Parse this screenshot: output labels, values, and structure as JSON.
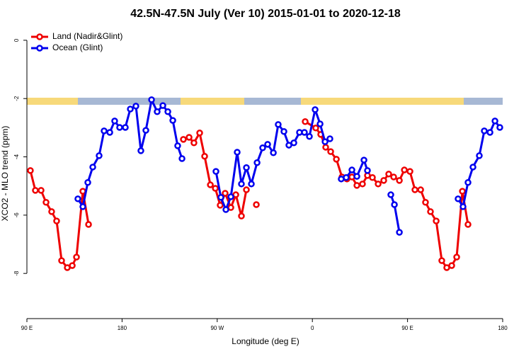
{
  "chart_data": {
    "type": "line",
    "title": "42.5N-47.5N July (Ver 10)   2015-01-01 to 2020-12-18",
    "x_label": "Longitude (deg E)",
    "y_label": "XCO2 - MLO trend (ppm)",
    "xlim": [
      90,
      540
    ],
    "ylim": [
      -9.55,
      0.41
    ],
    "xticks": [
      {
        "value": 90,
        "label": "90 E"
      },
      180,
      {
        "value": 270,
        "label": "90 W"
      },
      {
        "value": 360,
        "label": "0"
      },
      {
        "value": 450,
        "label": "90 E"
      },
      {
        "value": 540,
        "label": "180"
      }
    ],
    "yticks": [
      0,
      -2,
      -4,
      -6,
      -8
    ],
    "legend": "top-left",
    "series": [
      {
        "name": "Land (Nadir&Glint)",
        "color": "#ee0000",
        "x": [
          93.3,
          98.0,
          103.4,
          108.1,
          113.4,
          118.1,
          122.8,
          128.2,
          132.9,
          136.9,
          142.9,
          148.3,
          null,
          238.0,
          243.4,
          248.0,
          253.4,
          258.1,
          263.5,
          268.2,
          272.8,
          277.5,
          282.9,
          287.6,
          292.9,
          297.6,
          null,
          307.0,
          null,
          353.2,
          363.2,
          367.9,
          372.6,
          377.3,
          382.7,
          388.0,
          392.7,
          397.4,
          402.1,
          407.4,
          412.1,
          416.8,
          422.2,
          427.5,
          432.2,
          436.9,
          442.3,
          447.0,
          452.3,
          457.0,
          462.4,
          467.0,
          471.7,
          477.1,
          482.4,
          487.1,
          491.8,
          496.5,
          501.9,
          507.2
        ],
        "values": [
          -4.47,
          -5.15,
          -5.15,
          -5.56,
          -5.88,
          -6.2,
          -7.56,
          -7.8,
          -7.73,
          -7.44,
          -5.18,
          -6.32,
          null,
          -3.4,
          -3.33,
          -3.52,
          -3.18,
          -3.98,
          -4.96,
          -5.08,
          -5.66,
          -5.25,
          -5.74,
          -5.3,
          -6.03,
          -5.13,
          null,
          -5.64,
          null,
          -2.79,
          -3.01,
          -3.23,
          -3.67,
          -3.82,
          -4.08,
          -4.69,
          -4.76,
          -4.69,
          -4.98,
          -4.93,
          -4.64,
          -4.71,
          -4.93,
          -4.81,
          -4.59,
          -4.69,
          -4.81,
          -4.45,
          -4.5,
          -5.13,
          -5.13,
          -5.56,
          -5.88,
          -6.2,
          -7.56,
          -7.8,
          -7.73,
          -7.44,
          -5.18,
          -6.32
        ]
      },
      {
        "name": "Ocean (Glint)",
        "color": "#0000ee",
        "x": [
          138.2,
          142.9,
          147.6,
          152.3,
          158.3,
          163.0,
          168.4,
          173.0,
          177.7,
          183.1,
          187.8,
          193.1,
          197.8,
          202.5,
          207.9,
          213.2,
          218.6,
          223.3,
          228.0,
          232.6,
          236.7,
          null,
          268.8,
          273.5,
          278.2,
          282.9,
          288.9,
          292.9,
          297.6,
          302.3,
          307.7,
          313.0,
          317.7,
          323.1,
          327.7,
          333.1,
          337.8,
          342.5,
          347.8,
          352.5,
          357.2,
          362.6,
          367.3,
          372.0,
          376.6,
          null,
          387.3,
          392.0,
          397.4,
          402.1,
          408.8,
          412.1,
          null,
          434.2,
          437.6,
          442.3,
          null,
          497.8,
          502.5,
          507.2,
          511.9,
          517.9,
          522.6,
          528.0,
          532.7,
          537.3
        ],
        "values": [
          -5.44,
          -5.71,
          -4.88,
          -4.35,
          -3.96,
          -3.11,
          -3.16,
          -2.77,
          -2.99,
          -2.99,
          -2.36,
          -2.26,
          -3.79,
          -3.09,
          -2.04,
          -2.45,
          -2.24,
          -2.45,
          -2.75,
          -3.62,
          -4.06,
          null,
          -4.5,
          -5.39,
          -5.81,
          -5.37,
          -3.84,
          -4.93,
          -4.37,
          -4.93,
          -4.2,
          -3.69,
          -3.57,
          -3.86,
          -2.89,
          -3.13,
          -3.6,
          -3.52,
          -3.16,
          -3.16,
          -3.3,
          -2.38,
          -2.87,
          -3.48,
          -3.38,
          null,
          -4.76,
          -4.71,
          -4.45,
          -4.67,
          -4.11,
          -4.47,
          null,
          -5.3,
          -5.64,
          -6.59,
          null,
          -5.44,
          -5.71,
          -4.88,
          -4.35,
          -3.96,
          -3.11,
          -3.16,
          -2.77,
          -2.99
        ]
      }
    ]
  }
}
